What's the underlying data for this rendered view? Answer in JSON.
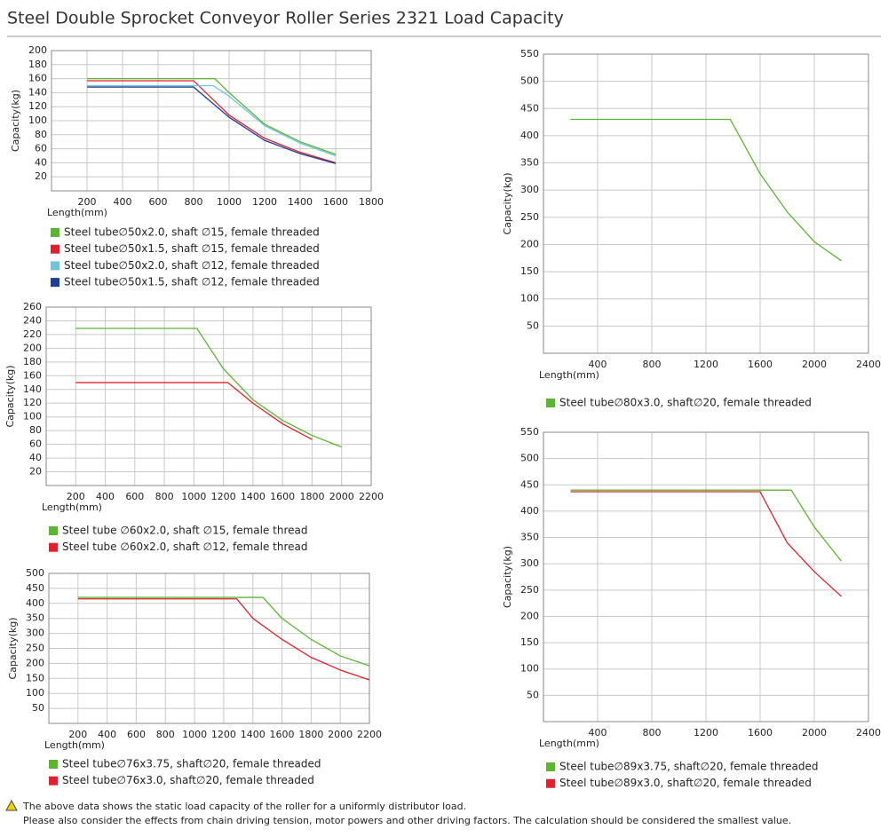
{
  "title": "Steel Double Sprocket Conveyor Roller Series 2321 Load Capacity",
  "notes": [
    "The above data shows the static load capacity of the roller for a uniformly distributor load.",
    "Please also consider the effects from chain driving tension, motor powers and other driving factors. The calculation should be considered the smallest value."
  ],
  "chart_data": [
    {
      "type": "line",
      "xlabel": "Length(mm)",
      "ylabel": "Capacity(kg)",
      "grid": true,
      "xlim": [
        0,
        1800
      ],
      "xticks": [
        200,
        400,
        600,
        800,
        1000,
        1200,
        1400,
        1600,
        1800
      ],
      "ylim": [
        0,
        200
      ],
      "yticks": [
        20,
        40,
        60,
        80,
        100,
        120,
        140,
        160,
        180,
        200
      ],
      "series": [
        {
          "name": "Steel tube∅50x2.0, shaft ∅15, female threaded",
          "color": "#5cb531",
          "x": [
            200,
            920,
            1000,
            1200,
            1400,
            1600
          ],
          "values": [
            160,
            160,
            140,
            95,
            70,
            52
          ]
        },
        {
          "name": "Steel tube∅50x1.5, shaft ∅15, female threaded",
          "color": "#e0202a",
          "x": [
            200,
            800,
            1000,
            1200,
            1400,
            1600
          ],
          "values": [
            157,
            157,
            108,
            75,
            55,
            40
          ]
        },
        {
          "name": "Steel tube∅50x2.0, shaft ∅12, female threaded",
          "color": "#6cc4df",
          "x": [
            200,
            910,
            1000,
            1200,
            1400,
            1600
          ],
          "values": [
            150,
            150,
            135,
            93,
            68,
            50
          ]
        },
        {
          "name": "Steel tube∅50x1.5, shaft ∅12, female threaded",
          "color": "#1c3f94",
          "x": [
            200,
            800,
            1000,
            1200,
            1400,
            1600
          ],
          "values": [
            148,
            148,
            105,
            72,
            53,
            39
          ]
        }
      ]
    },
    {
      "type": "line",
      "xlabel": "Length(mm)",
      "ylabel": "Capacity(kg)",
      "grid": true,
      "xlim": [
        0,
        2200
      ],
      "xticks": [
        200,
        400,
        600,
        800,
        1000,
        1200,
        1400,
        1600,
        1800,
        2000,
        2200
      ],
      "ylim": [
        0,
        260
      ],
      "yticks": [
        20,
        40,
        60,
        80,
        100,
        120,
        140,
        160,
        180,
        200,
        220,
        240,
        260
      ],
      "series": [
        {
          "name": "Steel tube ∅60x2.0, shaft ∅15, female thread",
          "color": "#5cb531",
          "x": [
            200,
            1020,
            1200,
            1400,
            1600,
            1800,
            2000
          ],
          "values": [
            229,
            229,
            170,
            125,
            95,
            73,
            56
          ]
        },
        {
          "name": "Steel tube ∅60x2.0, shaft ∅12, female thread",
          "color": "#e0202a",
          "x": [
            200,
            1230,
            1400,
            1600,
            1800
          ],
          "values": [
            150,
            150,
            120,
            90,
            67
          ]
        }
      ]
    },
    {
      "type": "line",
      "xlabel": "Length(mm)",
      "ylabel": "Capacity(kg)",
      "grid": true,
      "xlim": [
        0,
        2200
      ],
      "xticks": [
        200,
        400,
        600,
        800,
        1000,
        1200,
        1400,
        1600,
        1800,
        2000,
        2200
      ],
      "ylim": [
        0,
        500
      ],
      "yticks": [
        50,
        100,
        150,
        200,
        250,
        300,
        350,
        400,
        450,
        500
      ],
      "series": [
        {
          "name": "Steel tube∅76x3.75, shaft∅20, female threaded",
          "color": "#5cb531",
          "x": [
            200,
            1470,
            1600,
            1800,
            2000,
            2200
          ],
          "values": [
            420,
            420,
            350,
            280,
            225,
            192
          ]
        },
        {
          "name": "Steel tube∅76x3.0, shaft∅20, female threaded",
          "color": "#e0202a",
          "x": [
            200,
            1290,
            1400,
            1600,
            1800,
            2000,
            2200
          ],
          "values": [
            415,
            415,
            350,
            280,
            220,
            178,
            145
          ]
        }
      ]
    },
    {
      "type": "line",
      "xlabel": "Length(mm)",
      "ylabel": "Capacity(kg)",
      "grid": true,
      "xlim": [
        0,
        2400
      ],
      "xticks": [
        400,
        800,
        1200,
        1600,
        2000,
        2400
      ],
      "ylim": [
        0,
        550
      ],
      "yticks": [
        50,
        100,
        150,
        200,
        250,
        300,
        350,
        400,
        450,
        500,
        550
      ],
      "series": [
        {
          "name": "Steel tube∅80x3.0, shaft∅20, female threaded",
          "color": "#5cb531",
          "x": [
            200,
            1380,
            1600,
            1800,
            2000,
            2200
          ],
          "values": [
            430,
            430,
            330,
            260,
            205,
            170
          ]
        }
      ]
    },
    {
      "type": "line",
      "xlabel": "Length(mm)",
      "ylabel": "Capacity(kg)",
      "grid": true,
      "xlim": [
        0,
        2400
      ],
      "xticks": [
        400,
        800,
        1200,
        1600,
        2000,
        2400
      ],
      "ylim": [
        0,
        550
      ],
      "yticks": [
        50,
        100,
        150,
        200,
        250,
        300,
        350,
        400,
        450,
        500,
        550
      ],
      "series": [
        {
          "name": "Steel tube∅89x3.75, shaft∅20, female threaded",
          "color": "#5cb531",
          "x": [
            200,
            1830,
            2000,
            2200
          ],
          "values": [
            440,
            440,
            370,
            305
          ]
        },
        {
          "name": "Steel tube∅89x3.0, shaft∅20, female threaded",
          "color": "#e0202a",
          "x": [
            200,
            1600,
            1800,
            2000,
            2200
          ],
          "values": [
            437,
            437,
            340,
            285,
            238
          ]
        }
      ]
    }
  ]
}
